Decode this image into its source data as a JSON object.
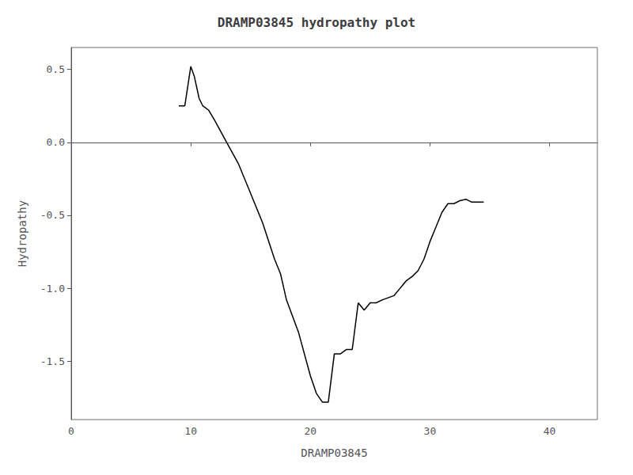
{
  "chart_data": {
    "type": "line",
    "title": "DRAMP03845 hydropathy plot",
    "xlabel": "DRAMP03845",
    "ylabel": "Hydropathy",
    "xlim": [
      0,
      44
    ],
    "ylim": [
      -1.9,
      0.65
    ],
    "xticks": [
      0,
      10,
      20,
      30,
      40
    ],
    "yticks": [
      -1.5,
      {
        "value": -1.0,
        "label": "-1.0"
      },
      -0.5,
      {
        "value": 0.0,
        "label": "0.0"
      },
      0.5
    ],
    "color": "#000000",
    "grid": false,
    "x": [
      9.0,
      9.5,
      10.0,
      10.3,
      10.7,
      11.0,
      11.5,
      12.0,
      13.0,
      14.0,
      15.0,
      16.0,
      17.0,
      17.5,
      18.0,
      19.0,
      20.0,
      20.5,
      21.0,
      21.5,
      22.0,
      22.5,
      23.0,
      23.5,
      24.0,
      24.5,
      25.0,
      25.5,
      26.0,
      27.0,
      27.5,
      28.0,
      28.5,
      29.0,
      29.5,
      30.0,
      30.5,
      31.0,
      31.5,
      32.0,
      32.5,
      33.0,
      33.5,
      34.0,
      34.5
    ],
    "values": [
      0.25,
      0.25,
      0.52,
      0.45,
      0.3,
      0.25,
      0.22,
      0.15,
      0.0,
      -0.15,
      -0.35,
      -0.55,
      -0.8,
      -0.9,
      -1.08,
      -1.3,
      -1.6,
      -1.72,
      -1.78,
      -1.78,
      -1.45,
      -1.45,
      -1.42,
      -1.42,
      -1.1,
      -1.15,
      -1.1,
      -1.1,
      -1.08,
      -1.05,
      -1.0,
      -0.95,
      -0.92,
      -0.88,
      -0.8,
      -0.68,
      -0.58,
      -0.48,
      -0.42,
      -0.42,
      -0.4,
      -0.39,
      -0.41,
      -0.41,
      -0.41
    ]
  }
}
